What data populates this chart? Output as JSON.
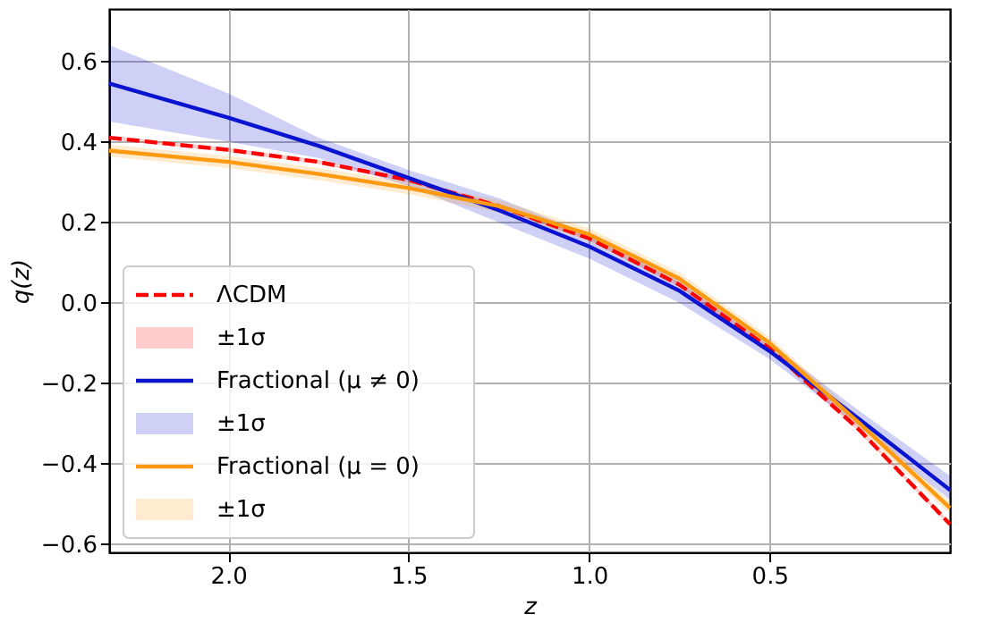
{
  "chart_data": {
    "type": "line",
    "xlabel": "z",
    "ylabel": "q(z)",
    "x": [
      2.33,
      2.0,
      1.75,
      1.5,
      1.25,
      1.0,
      0.75,
      0.5,
      0.25,
      0.0
    ],
    "xlim": [
      2.33,
      0.0
    ],
    "xticks": [
      {
        "value": 2,
        "label": "2.0"
      },
      1.5,
      {
        "value": 1,
        "label": "1.0"
      },
      0.5
    ],
    "ylim": [
      -0.62,
      0.73
    ],
    "yticks": [
      -0.6,
      -0.4,
      -0.2,
      {
        "value": 0,
        "label": "0.0"
      },
      0.2,
      0.4,
      0.6
    ],
    "grid": true,
    "legend": "bottom left",
    "annotations": [
      "±1σ",
      "±1σ",
      "±1σ"
    ],
    "series": [
      {
        "name": "ΛCDM",
        "type": "line",
        "line_style": "dashed",
        "color": "#ff0000",
        "values": [
          0.41,
          0.38,
          0.35,
          0.305,
          0.24,
          0.16,
          0.045,
          -0.113,
          -0.317,
          -0.55
        ],
        "lower": [
          0.405,
          0.375,
          0.345,
          0.3,
          0.235,
          0.155,
          0.04,
          -0.118,
          -0.322,
          -0.555
        ],
        "upper": [
          0.415,
          0.385,
          0.355,
          0.31,
          0.245,
          0.165,
          0.05,
          -0.108,
          -0.312,
          -0.545
        ]
      },
      {
        "name": "Fractional (μ ≠ 0)",
        "type": "line",
        "line_style": "solid",
        "color": "#0a14d0",
        "values": [
          0.545,
          0.46,
          0.39,
          0.31,
          0.23,
          0.14,
          0.03,
          -0.12,
          -0.29,
          -0.465
        ],
        "lower": [
          0.45,
          0.4,
          0.36,
          0.29,
          0.2,
          0.11,
          0.0,
          -0.14,
          -0.31,
          -0.49
        ],
        "upper": [
          0.64,
          0.52,
          0.41,
          0.33,
          0.26,
          0.17,
          0.06,
          -0.1,
          -0.27,
          -0.43
        ]
      },
      {
        "name": "Fractional (μ = 0)",
        "type": "line",
        "line_style": "solid",
        "color": "#ff9a10",
        "values": [
          0.378,
          0.35,
          0.32,
          0.285,
          0.24,
          0.17,
          0.06,
          -0.1,
          -0.3,
          -0.51
        ],
        "lower": [
          0.363,
          0.335,
          0.305,
          0.27,
          0.225,
          0.155,
          0.045,
          -0.115,
          -0.315,
          -0.525
        ],
        "upper": [
          0.393,
          0.365,
          0.335,
          0.3,
          0.255,
          0.185,
          0.075,
          -0.085,
          -0.285,
          -0.495
        ]
      }
    ]
  }
}
